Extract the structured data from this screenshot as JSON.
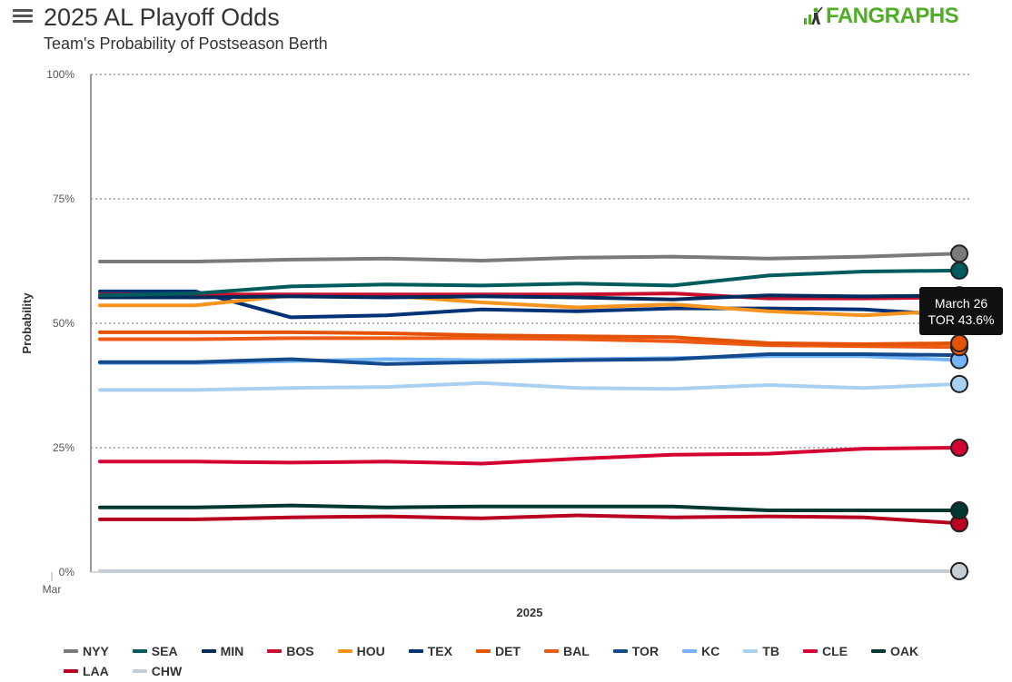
{
  "header": {
    "menu_icon": "hamburger-menu-icon",
    "title": "2025 AL Playoff Odds",
    "subtitle": "Team's Probability of Postseason Berth",
    "logo_text": "FANGRAPHS",
    "logo_color": "#50ae26"
  },
  "tooltip": {
    "line1": "March 26",
    "line2": "TOR 43.6%"
  },
  "chart_data": {
    "type": "line",
    "title": "2025 AL Playoff Odds",
    "subtitle": "Team's Probability of Postseason Berth",
    "xlabel": "2025",
    "ylabel": "Probability",
    "ylim": [
      0,
      100
    ],
    "yticks": [
      "0%",
      "25%",
      "50%",
      "75%",
      "100%"
    ],
    "x_axis_label": "Mar",
    "grid": true,
    "legend_position": "bottom",
    "x": [
      0,
      1,
      2,
      3,
      4,
      5,
      6,
      7,
      8,
      9
    ],
    "series": [
      {
        "name": "NYY",
        "color": "#7a7a7a",
        "values": [
          62.4,
          62.4,
          62.8,
          63.0,
          62.6,
          63.2,
          63.4,
          63.0,
          63.4,
          64.0
        ]
      },
      {
        "name": "SEA",
        "color": "#005c5c",
        "values": [
          55.6,
          56.0,
          57.4,
          57.8,
          57.6,
          58.0,
          57.6,
          59.6,
          60.4,
          60.6
        ]
      },
      {
        "name": "MIN",
        "color": "#002b5c",
        "values": [
          55.2,
          55.2,
          55.4,
          55.2,
          55.4,
          55.2,
          54.8,
          55.6,
          55.4,
          55.6
        ]
      },
      {
        "name": "BOS",
        "color": "#c8102e",
        "values": [
          55.8,
          55.8,
          55.8,
          55.8,
          55.8,
          55.8,
          56.0,
          55.0,
          55.0,
          55.2
        ]
      },
      {
        "name": "HOU",
        "color": "#f7941d",
        "values": [
          53.6,
          53.6,
          55.6,
          55.6,
          54.2,
          53.2,
          53.8,
          52.4,
          51.6,
          52.6
        ]
      },
      {
        "name": "TEX",
        "color": "#003278",
        "values": [
          56.4,
          56.4,
          51.2,
          51.6,
          52.8,
          52.4,
          53.0,
          53.0,
          52.8,
          51.6
        ]
      },
      {
        "name": "DET",
        "color": "#e35205",
        "values": [
          48.2,
          48.2,
          48.2,
          48.0,
          47.6,
          47.4,
          47.2,
          46.0,
          45.8,
          46.0
        ]
      },
      {
        "name": "BAL",
        "color": "#ee5a16",
        "values": [
          46.8,
          46.8,
          47.0,
          47.0,
          47.0,
          46.8,
          46.4,
          45.6,
          45.4,
          45.2
        ]
      },
      {
        "name": "TOR",
        "color": "#134a8e",
        "values": [
          42.2,
          42.2,
          42.8,
          41.8,
          42.2,
          42.6,
          42.8,
          43.8,
          43.8,
          43.6
        ]
      },
      {
        "name": "KC",
        "color": "#74b4fa",
        "values": [
          42.0,
          42.0,
          42.4,
          42.8,
          42.6,
          42.8,
          43.0,
          43.4,
          43.4,
          42.6
        ]
      },
      {
        "name": "TB",
        "color": "#a8d0f0",
        "values": [
          36.6,
          36.6,
          37.0,
          37.2,
          38.0,
          37.0,
          36.8,
          37.6,
          37.0,
          37.8
        ]
      },
      {
        "name": "CLE",
        "color": "#d50032",
        "values": [
          22.2,
          22.2,
          22.0,
          22.2,
          21.8,
          22.8,
          23.6,
          23.8,
          24.8,
          25.0
        ]
      },
      {
        "name": "OAK",
        "color": "#003831",
        "values": [
          13.0,
          13.0,
          13.4,
          13.0,
          13.2,
          13.2,
          13.2,
          12.4,
          12.4,
          12.4
        ]
      },
      {
        "name": "LAA",
        "color": "#ba0021",
        "values": [
          10.6,
          10.6,
          11.0,
          11.2,
          10.8,
          11.4,
          11.0,
          11.2,
          11.0,
          9.8
        ]
      },
      {
        "name": "CHW",
        "color": "#c4ced4",
        "values": [
          0.2,
          0.2,
          0.2,
          0.2,
          0.2,
          0.2,
          0.2,
          0.2,
          0.2,
          0.2
        ]
      }
    ]
  }
}
